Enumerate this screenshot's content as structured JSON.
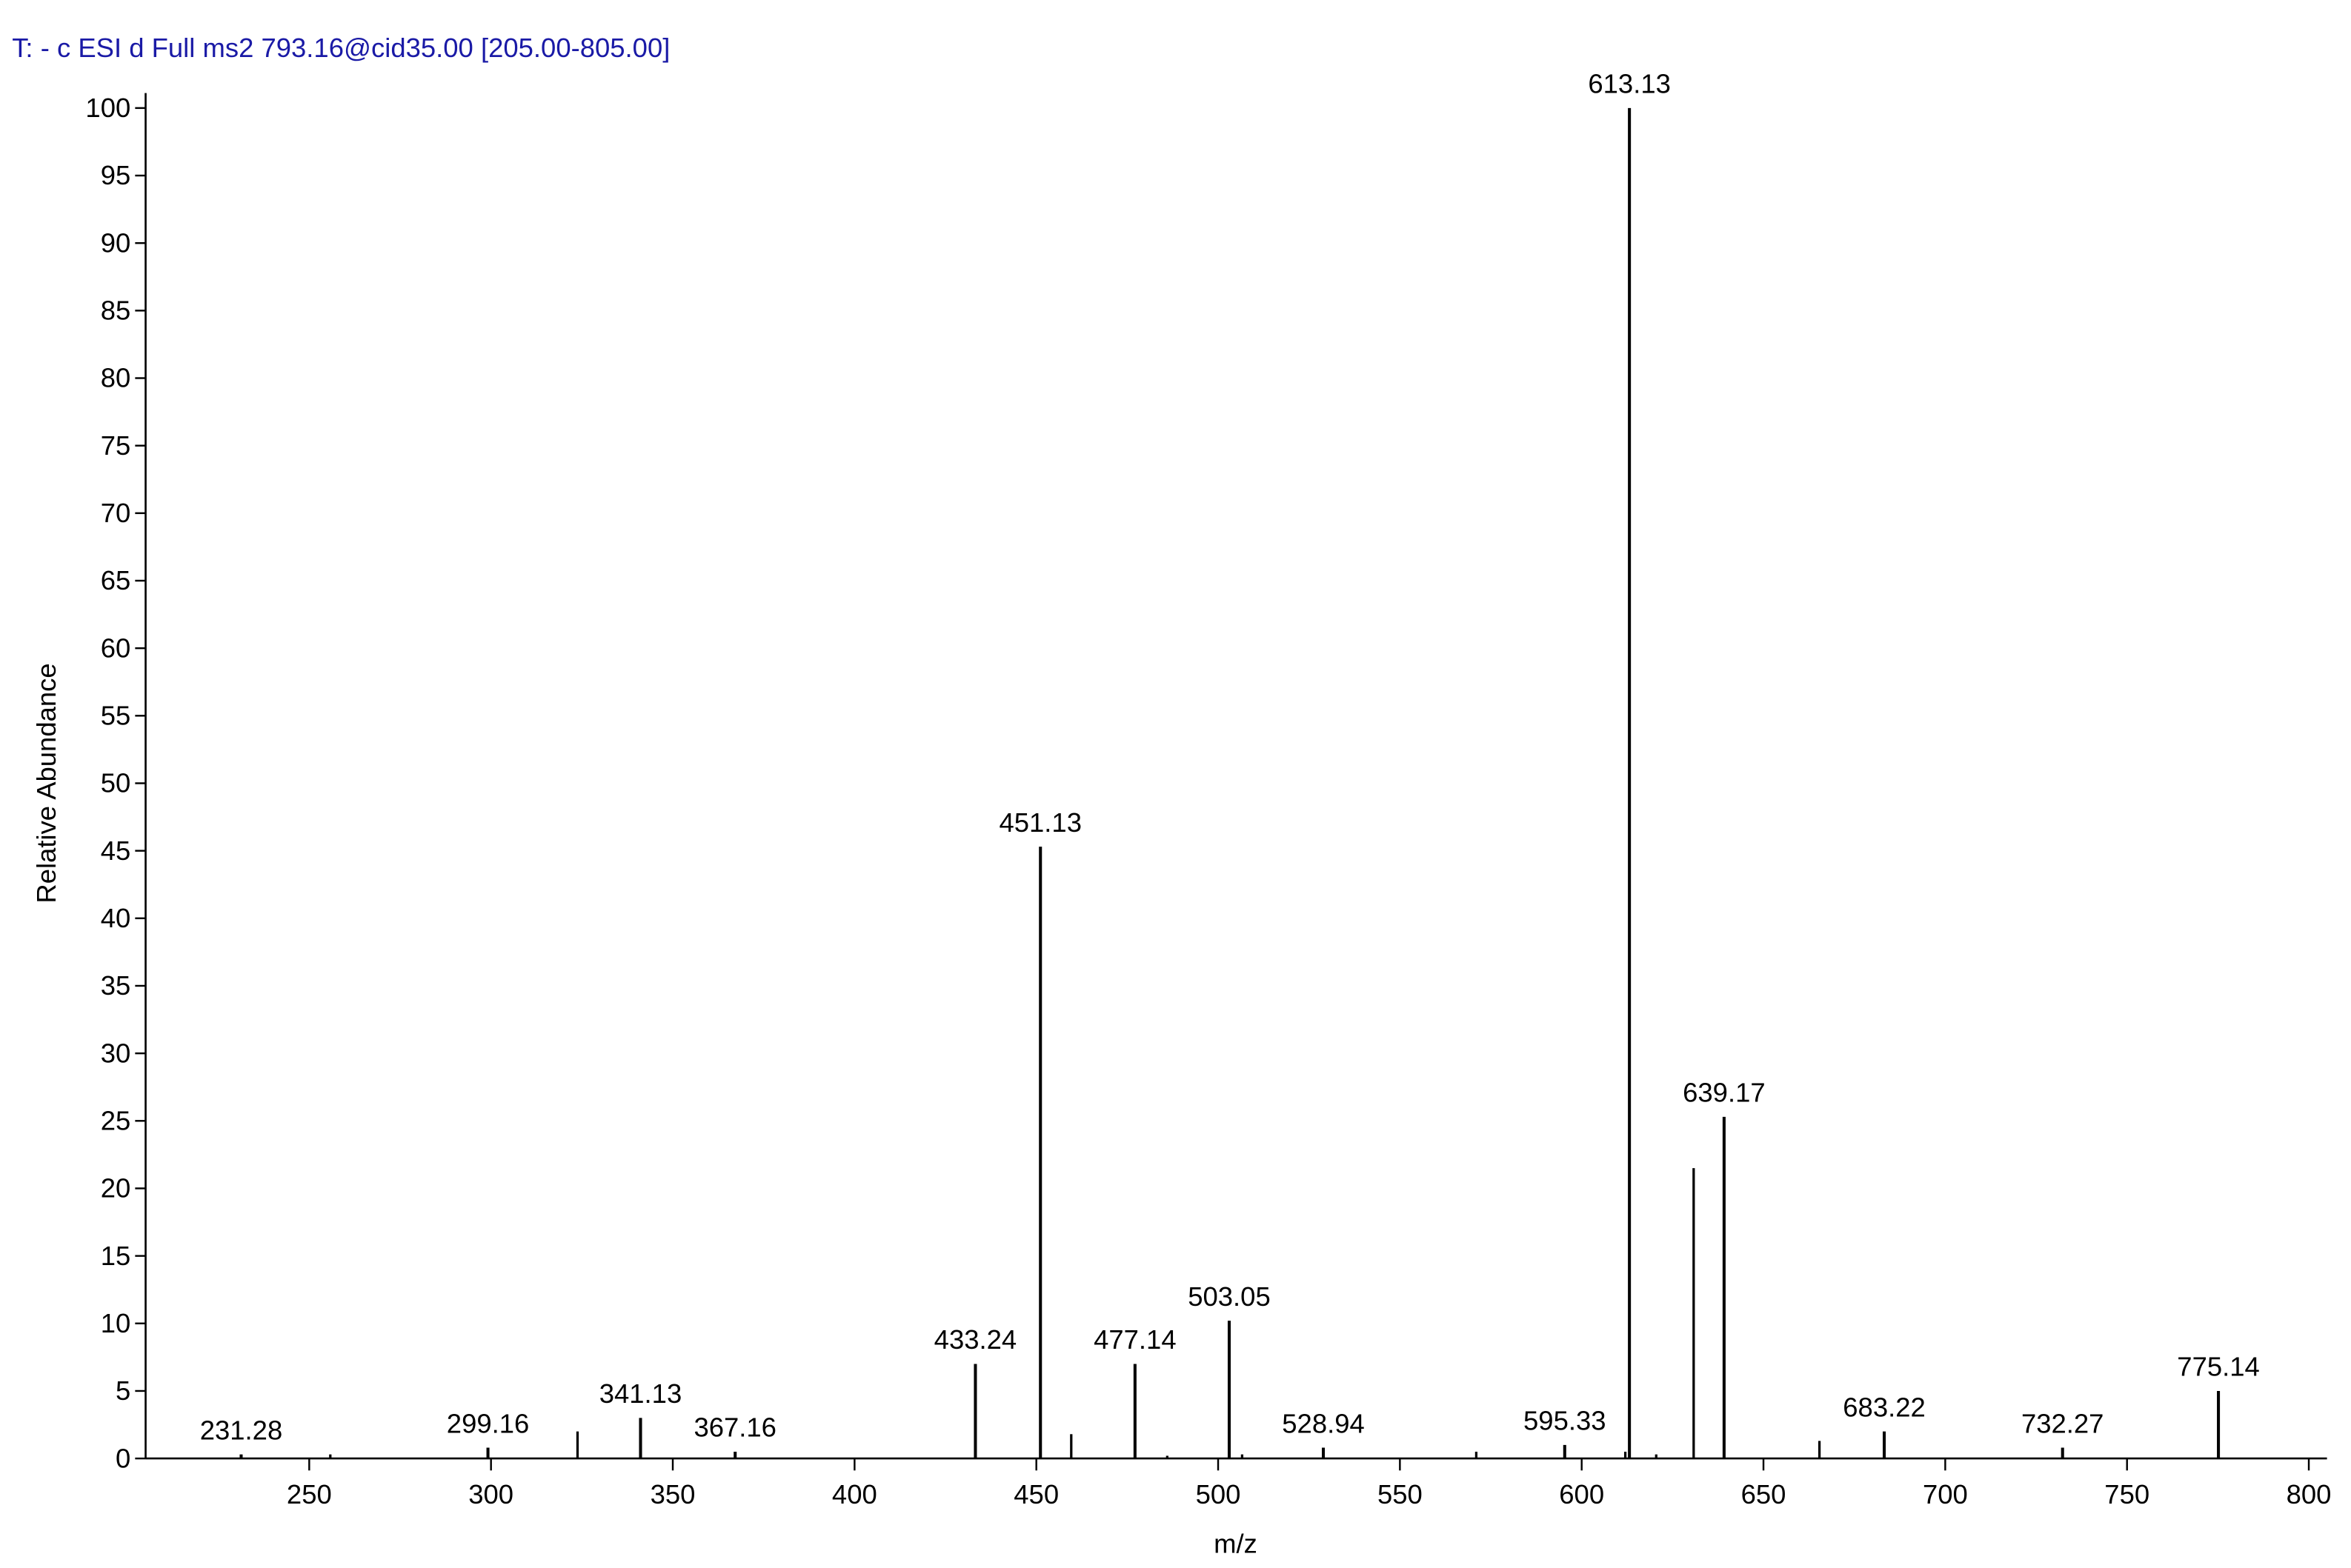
{
  "chart_data": {
    "type": "spectrum",
    "title": "T: - c ESI d Full ms2 793.16@cid35.00 [205.00-805.00]",
    "title_color": "#1a1aa6",
    "x_label": "m/z",
    "y_label": "Relative Abundance",
    "x": [
      231.28,
      299.16,
      341.13,
      367.16,
      433.24,
      451.13,
      477.14,
      503.05,
      528.94,
      595.33,
      613.13,
      639.17,
      683.22,
      732.27,
      775.14
    ],
    "values": [
      0.3,
      0.8,
      3,
      0.5,
      7,
      45.3,
      7,
      10.2,
      0.8,
      1,
      100,
      25.3,
      2,
      0.8,
      5
    ],
    "minor_x": [
      255.8,
      323.8,
      459.6,
      486,
      506.6,
      571,
      612,
      620.5,
      630.8,
      665.4
    ],
    "minor_values": [
      0.3,
      2,
      1.8,
      0.2,
      0.3,
      0.5,
      0.5,
      0.3,
      21.5,
      1.3
    ],
    "color": "#000000",
    "xlim": [
      205,
      805
    ],
    "ylim": [
      0,
      100
    ],
    "xticks": [
      250,
      300,
      350,
      400,
      450,
      500,
      550,
      600,
      650,
      700,
      750,
      800
    ],
    "yticks": [
      0,
      5,
      10,
      15,
      20,
      25,
      30,
      35,
      40,
      45,
      50,
      55,
      60,
      65,
      70,
      75,
      80,
      85,
      90,
      95,
      100
    ]
  }
}
